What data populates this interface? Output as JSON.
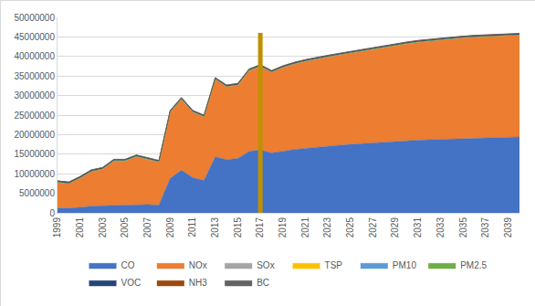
{
  "chart_data": {
    "type": "area",
    "stacked": true,
    "grid": true,
    "legend": "bottom",
    "x": [
      1999,
      2000,
      2001,
      2002,
      2003,
      2004,
      2005,
      2006,
      2007,
      2008,
      2009,
      2010,
      2011,
      2012,
      2013,
      2014,
      2015,
      2016,
      2017,
      2018,
      2019,
      2020,
      2021,
      2022,
      2023,
      2024,
      2025,
      2026,
      2027,
      2028,
      2029,
      2030,
      2031,
      2032,
      2033,
      2034,
      2035,
      2036,
      2037,
      2038,
      2039,
      2040
    ],
    "xlim": [
      1999,
      2040
    ],
    "xticks": [
      1999,
      2001,
      2003,
      2005,
      2007,
      2009,
      2011,
      2013,
      2015,
      2017,
      2019,
      2021,
      2023,
      2025,
      2027,
      2029,
      2031,
      2033,
      2035,
      2037,
      2039
    ],
    "ylim": [
      0,
      50000000
    ],
    "yticks": [
      0,
      5000000,
      10000000,
      15000000,
      20000000,
      25000000,
      30000000,
      35000000,
      40000000,
      45000000,
      50000000
    ],
    "reference_line": {
      "x": 2017,
      "top": 46000000,
      "color": "#bf9000"
    },
    "series": [
      {
        "name": "CO",
        "color": "#4472c4",
        "values": [
          1200000,
          1200000,
          1400000,
          1700000,
          1800000,
          1900000,
          1900000,
          2000000,
          2100000,
          2000000,
          8800000,
          10900000,
          9000000,
          8300000,
          14300000,
          13600000,
          13900000,
          15700000,
          16100000,
          15300000,
          15800000,
          16200000,
          16500000,
          16800000,
          17100000,
          17300000,
          17500000,
          17700000,
          17900000,
          18100000,
          18300000,
          18500000,
          18600000,
          18700000,
          18800000,
          18900000,
          19000000,
          19100000,
          19200000,
          19300000,
          19350000,
          19400000
        ]
      },
      {
        "name": "NOx",
        "color": "#ed7d31",
        "values": [
          6550000,
          6250000,
          7450000,
          8850000,
          9350000,
          11350000,
          11350000,
          12350000,
          11550000,
          10950000,
          16950000,
          18150000,
          16750000,
          16250000,
          19850000,
          18650000,
          18750000,
          20650000,
          21350000,
          20650000,
          21350000,
          21850000,
          22250000,
          22550000,
          22750000,
          23050000,
          23350000,
          23650000,
          23950000,
          24250000,
          24550000,
          24750000,
          25050000,
          25250000,
          25450000,
          25650000,
          25750000,
          25850000,
          25850000,
          25950000,
          26000000,
          26050000
        ]
      },
      {
        "name": "SOx",
        "color": "#a5a5a5",
        "values": [
          40000,
          40000,
          40000,
          40000,
          40000,
          40000,
          40000,
          40000,
          40000,
          40000,
          40000,
          40000,
          40000,
          40000,
          40000,
          40000,
          40000,
          40000,
          40000,
          40000,
          40000,
          40000,
          40000,
          40000,
          40000,
          40000,
          40000,
          40000,
          40000,
          40000,
          40000,
          40000,
          40000,
          40000,
          40000,
          40000,
          40000,
          40000,
          40000,
          40000,
          40000,
          40000
        ]
      },
      {
        "name": "TSP",
        "color": "#ffc000",
        "values": [
          30000,
          30000,
          30000,
          30000,
          30000,
          30000,
          30000,
          30000,
          30000,
          30000,
          30000,
          30000,
          30000,
          30000,
          30000,
          30000,
          30000,
          30000,
          30000,
          30000,
          30000,
          30000,
          30000,
          30000,
          30000,
          30000,
          30000,
          30000,
          30000,
          30000,
          30000,
          30000,
          30000,
          30000,
          30000,
          30000,
          30000,
          30000,
          30000,
          30000,
          30000,
          30000
        ]
      },
      {
        "name": "PM10",
        "color": "#5b9bd5",
        "values": [
          25000,
          25000,
          25000,
          25000,
          25000,
          25000,
          25000,
          25000,
          25000,
          25000,
          25000,
          25000,
          25000,
          25000,
          25000,
          25000,
          25000,
          25000,
          25000,
          25000,
          25000,
          25000,
          25000,
          25000,
          25000,
          25000,
          25000,
          25000,
          25000,
          25000,
          25000,
          25000,
          25000,
          25000,
          25000,
          25000,
          25000,
          25000,
          25000,
          25000,
          25000,
          25000
        ]
      },
      {
        "name": "PM2.5",
        "color": "#70ad47",
        "values": [
          15000,
          15000,
          15000,
          15000,
          15000,
          15000,
          15000,
          15000,
          15000,
          15000,
          15000,
          15000,
          15000,
          15000,
          15000,
          15000,
          15000,
          15000,
          15000,
          15000,
          15000,
          15000,
          15000,
          15000,
          15000,
          15000,
          15000,
          15000,
          15000,
          15000,
          15000,
          15000,
          15000,
          15000,
          15000,
          15000,
          15000,
          15000,
          15000,
          15000,
          15000,
          15000
        ]
      },
      {
        "name": "VOC",
        "color": "#264478",
        "values": [
          300000,
          300000,
          300000,
          300000,
          300000,
          300000,
          300000,
          300000,
          300000,
          300000,
          300000,
          300000,
          300000,
          300000,
          300000,
          300000,
          300000,
          300000,
          300000,
          300000,
          300000,
          300000,
          300000,
          300000,
          300000,
          300000,
          300000,
          300000,
          300000,
          300000,
          300000,
          300000,
          300000,
          300000,
          300000,
          300000,
          300000,
          300000,
          300000,
          300000,
          300000,
          300000
        ]
      },
      {
        "name": "NH3",
        "color": "#9e480e",
        "values": [
          30000,
          30000,
          30000,
          30000,
          30000,
          30000,
          30000,
          30000,
          30000,
          30000,
          30000,
          30000,
          30000,
          30000,
          30000,
          30000,
          30000,
          30000,
          30000,
          30000,
          30000,
          30000,
          30000,
          30000,
          30000,
          30000,
          30000,
          30000,
          30000,
          30000,
          30000,
          30000,
          30000,
          30000,
          30000,
          30000,
          30000,
          30000,
          30000,
          30000,
          30000,
          30000
        ]
      },
      {
        "name": "BC",
        "color": "#636363",
        "values": [
          10000,
          10000,
          10000,
          10000,
          10000,
          10000,
          10000,
          10000,
          10000,
          10000,
          10000,
          10000,
          10000,
          10000,
          10000,
          10000,
          10000,
          10000,
          10000,
          10000,
          10000,
          10000,
          10000,
          10000,
          10000,
          10000,
          10000,
          10000,
          10000,
          10000,
          10000,
          10000,
          10000,
          10000,
          10000,
          10000,
          10000,
          10000,
          10000,
          10000,
          10000,
          10000
        ]
      }
    ]
  }
}
